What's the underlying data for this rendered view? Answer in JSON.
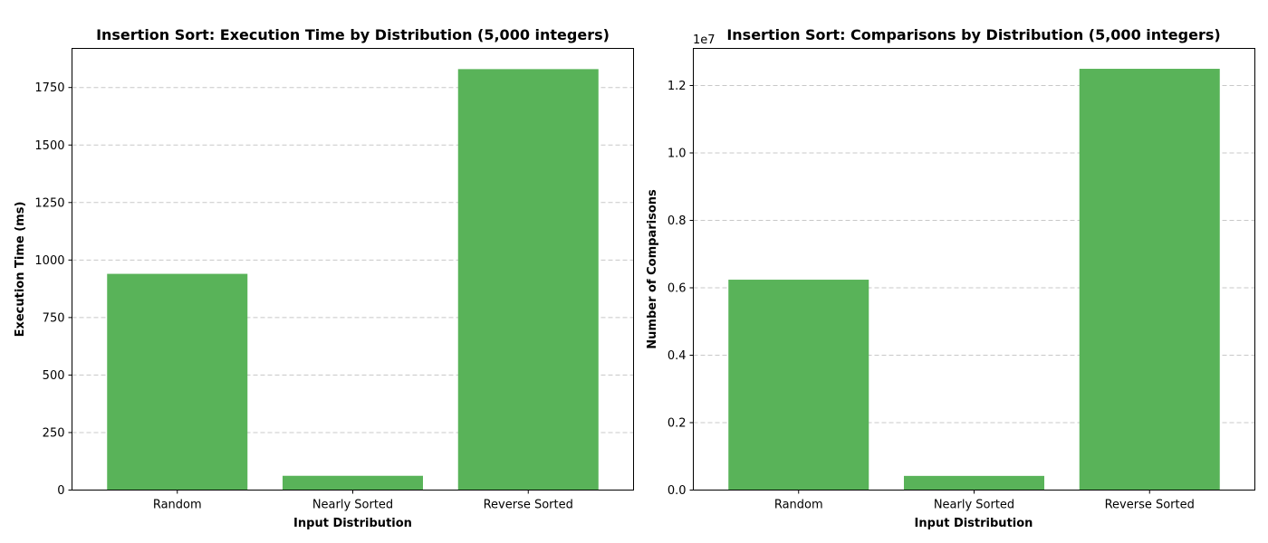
{
  "chart_data": [
    {
      "type": "bar",
      "title": "Insertion Sort: Execution Time by Distribution (5,000 integers)",
      "xlabel": "Input Distribution",
      "ylabel": "Execution Time (ms)",
      "categories": [
        "Random",
        "Nearly Sorted",
        "Reverse Sorted"
      ],
      "values": [
        940,
        62,
        1830
      ],
      "ylim": [
        0,
        1920
      ],
      "yticks": [
        0,
        250,
        500,
        750,
        1000,
        1250,
        1500,
        1750
      ],
      "ytick_labels": [
        "0",
        "250",
        "500",
        "750",
        "1000",
        "1250",
        "1500",
        "1750"
      ],
      "y_offset_label": "",
      "grid": "y",
      "bar_color": "#59b359"
    },
    {
      "type": "bar",
      "title": "Insertion Sort: Comparisons by Distribution (5,000 integers)",
      "xlabel": "Input Distribution",
      "ylabel": "Number of Comparisons",
      "categories": [
        "Random",
        "Nearly Sorted",
        "Reverse Sorted"
      ],
      "values": [
        6240000,
        420000,
        12495000
      ],
      "ylim": [
        0,
        13100000
      ],
      "yticks": [
        0,
        2000000,
        4000000,
        6000000,
        8000000,
        10000000,
        12000000
      ],
      "ytick_labels": [
        "0.0",
        "0.2",
        "0.4",
        "0.6",
        "0.8",
        "1.0",
        "1.2"
      ],
      "y_offset_label": "1e7",
      "grid": "y",
      "bar_color": "#59b359"
    }
  ]
}
